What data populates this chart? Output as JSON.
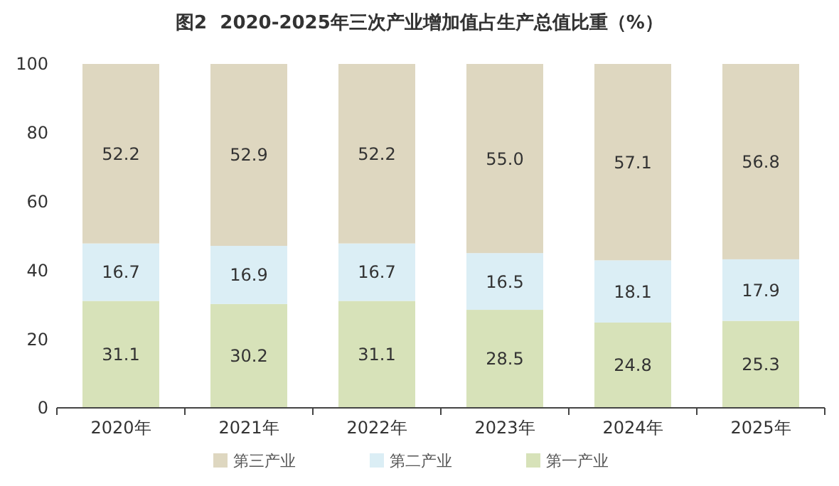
{
  "chart_data": {
    "type": "bar",
    "title": "图2  2020-2025年三次产业增加值占生产总值比重（%）",
    "categories": [
      "2020年",
      "2021年",
      "2022年",
      "2023年",
      "2024年",
      "2025年"
    ],
    "stacked": true,
    "data_labels": true,
    "ylim": [
      0,
      100
    ],
    "yticks": [
      0,
      20,
      40,
      60,
      80,
      100
    ],
    "grid": false,
    "legend": "bottom",
    "series": [
      {
        "name": "第一产业",
        "color": "#d7e2b9",
        "values": [
          31.1,
          30.2,
          31.1,
          28.5,
          24.8,
          25.3
        ]
      },
      {
        "name": "第二产业",
        "color": "#dbeef5",
        "values": [
          16.7,
          16.9,
          16.7,
          16.5,
          18.1,
          17.9
        ]
      },
      {
        "name": "第三产业",
        "color": "#ded7c0",
        "values": [
          52.2,
          52.9,
          52.2,
          55.0,
          57.1,
          56.8
        ],
        "value_labels": [
          "52.2",
          "52.9",
          "52.2",
          "55.0",
          "57.1",
          "56.8"
        ]
      }
    ]
  }
}
